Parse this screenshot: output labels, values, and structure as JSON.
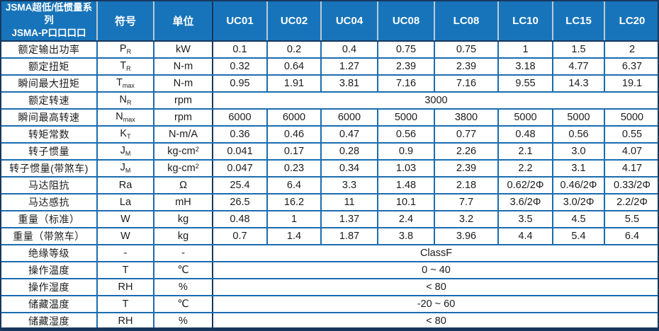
{
  "header": {
    "series_title_line1": "JSMA超低/低惯量系列",
    "series_title_line2": "JSMA-P口口口口",
    "symbol_col": "符号",
    "unit_col": "单位",
    "model_columns": [
      "UC01",
      "UC02",
      "UC04",
      "UC08",
      "LC08",
      "LC10",
      "LC15",
      "LC20"
    ]
  },
  "rows": [
    {
      "label": "额定输出功率",
      "symbol": "P",
      "symbol_sub": "R",
      "unit": "kW",
      "values": [
        "0.1",
        "0.2",
        "0.4",
        "0.75",
        "0.75",
        "1",
        "1.5",
        "2"
      ]
    },
    {
      "label": "额定扭矩",
      "symbol": "T",
      "symbol_sub": "R",
      "unit": "N-m",
      "values": [
        "0.32",
        "0.64",
        "1.27",
        "2.39",
        "2.39",
        "3.18",
        "4.77",
        "6.37"
      ]
    },
    {
      "label": "瞬间最大扭矩",
      "symbol": "T",
      "symbol_sub": "max",
      "unit": "N-m",
      "values": [
        "0.95",
        "1.91",
        "3.81",
        "7.16",
        "7.16",
        "9.55",
        "14.3",
        "19.1"
      ]
    },
    {
      "label": "额定转速",
      "symbol": "N",
      "symbol_sub": "R",
      "unit": "rpm",
      "merged_value": "3000"
    },
    {
      "label": "瞬间最高转速",
      "symbol": "N",
      "symbol_sub": "max",
      "unit": "rpm",
      "values": [
        "6000",
        "6000",
        "6000",
        "5000",
        "3800",
        "5000",
        "5000",
        "5000"
      ]
    },
    {
      "label": "转矩常数",
      "symbol": "K",
      "symbol_sub": "T",
      "unit": "N-m/A",
      "values": [
        "0.36",
        "0.46",
        "0.47",
        "0.56",
        "0.77",
        "0.48",
        "0.56",
        "0.55"
      ]
    },
    {
      "label": "转子惯量",
      "symbol": "J",
      "symbol_sub": "M",
      "unit": "kg-cm",
      "unit_sup": "2",
      "values": [
        "0.041",
        "0.17",
        "0.28",
        "0.9",
        "2.26",
        "2.1",
        "3.0",
        "4.07"
      ]
    },
    {
      "label": "转子惯量(带煞车)",
      "symbol": "J",
      "symbol_sub": "M",
      "unit": "kg-cm",
      "unit_sup": "2",
      "values": [
        "0.047",
        "0.23",
        "0.34",
        "1.03",
        "2.39",
        "2.2",
        "3.1",
        "4.17"
      ]
    },
    {
      "label": "马达阻抗",
      "symbol": "Ra",
      "unit": "Ω",
      "values": [
        "25.4",
        "6.4",
        "3.3",
        "1.48",
        "2.18",
        "0.62/2Φ",
        "0.46/2Φ",
        "0.33/2Φ"
      ]
    },
    {
      "label": "马达感抗",
      "symbol": "La",
      "unit": "mH",
      "values": [
        "26.5",
        "16.2",
        "11",
        "10.1",
        "7.7",
        "3.6/2Φ",
        "3.0/2Φ",
        "2.2/2Φ"
      ]
    },
    {
      "label": "重量（标准）",
      "symbol": "W",
      "unit": "kg",
      "values": [
        "0.48",
        "1",
        "1.37",
        "2.4",
        "3.2",
        "3.5",
        "4.5",
        "5.5"
      ]
    },
    {
      "label": "重量（带煞车）",
      "symbol": "W",
      "unit": "kg",
      "values": [
        "0.7",
        "1.4",
        "1.87",
        "3.8",
        "3.96",
        "4.4",
        "5.4",
        "6.4"
      ]
    },
    {
      "label": "绝缘等级",
      "symbol": "-",
      "unit": "-",
      "merged_value": "ClassF"
    },
    {
      "label": "操作温度",
      "symbol": "T",
      "unit": "℃",
      "merged_value": "0 ~ 40"
    },
    {
      "label": "操作湿度",
      "symbol": "RH",
      "unit": "%",
      "merged_value": "< 80"
    },
    {
      "label": "储藏温度",
      "symbol": "T",
      "unit": "℃",
      "merged_value": "-20 ~ 60"
    },
    {
      "label": "储藏湿度",
      "symbol": "RH",
      "unit": "%",
      "merged_value": "< 80"
    }
  ],
  "colors": {
    "header_bg": "#1774ba",
    "header_text": "#ffffff",
    "grid_border": "#1a6cb0",
    "outer_border": "#17375e",
    "body_text": "#1c1c1c"
  }
}
